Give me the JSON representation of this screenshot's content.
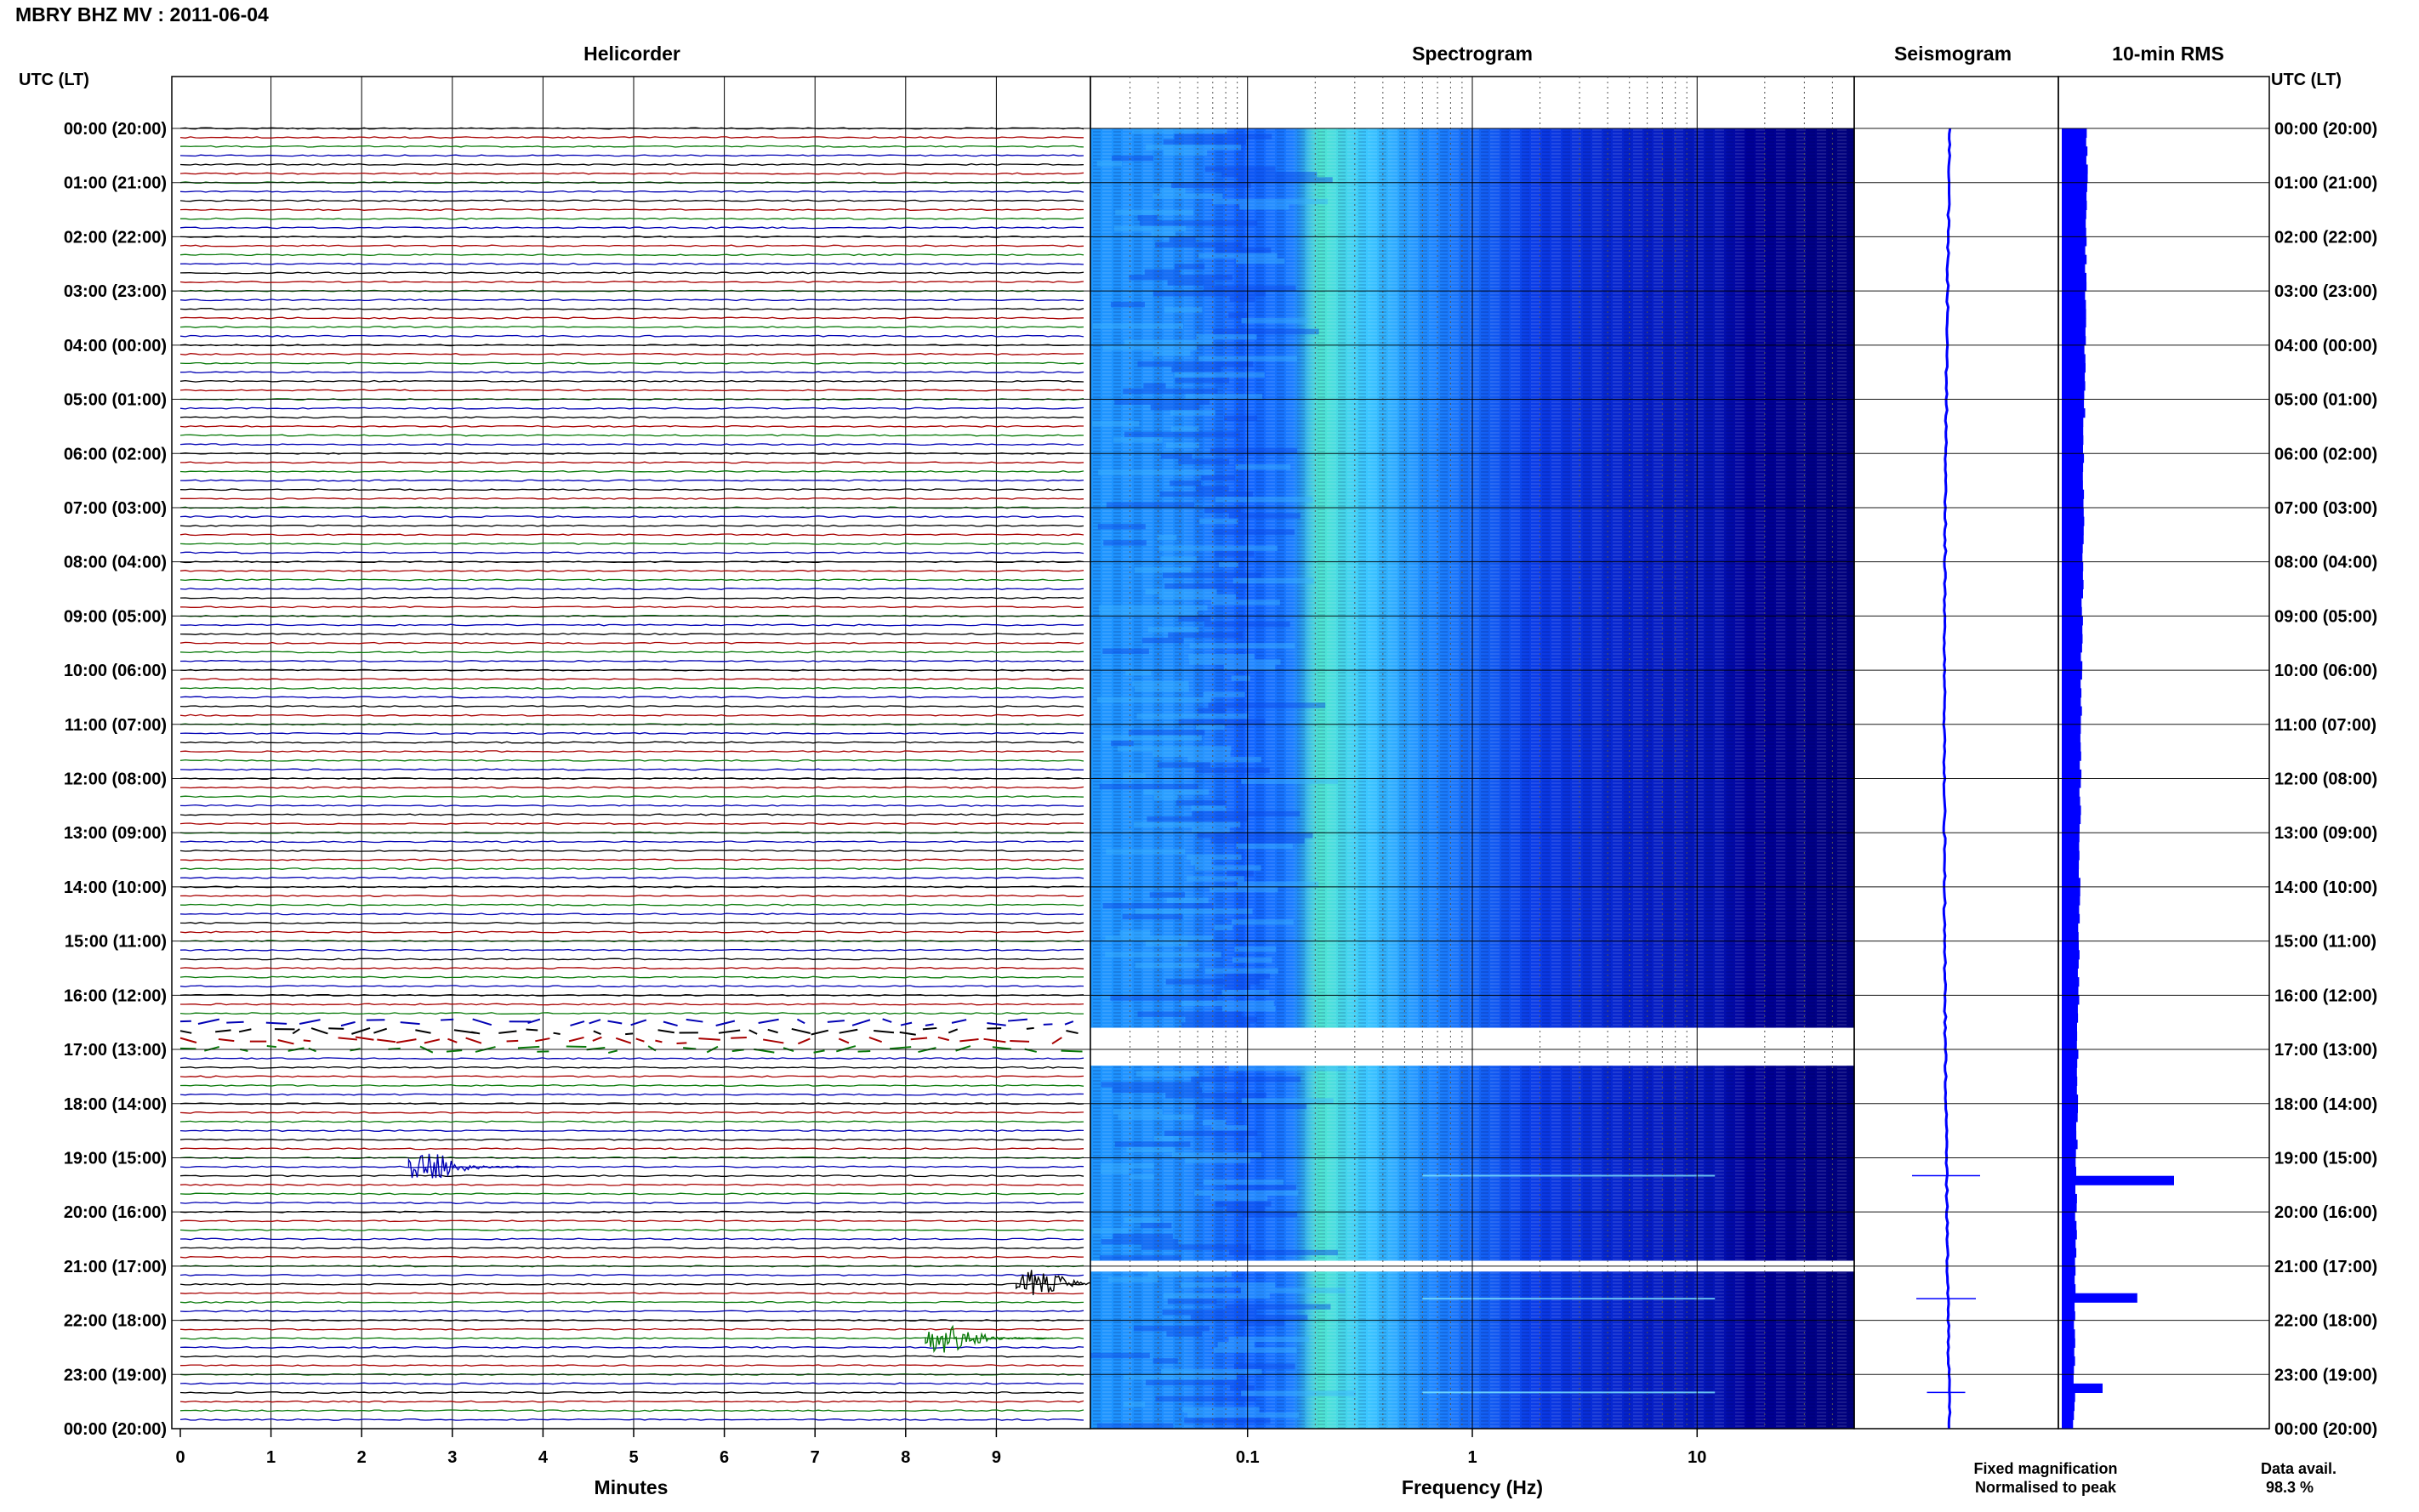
{
  "title": "MBRY BHZ MV : 2011-06-04",
  "panels": {
    "helicorder": "Helicorder",
    "spectrogram": "Spectrogram",
    "seismogram": "Seismogram",
    "rms": "10-min RMS"
  },
  "time_axis_label": "UTC (LT)",
  "legend": {
    "fixed": "Fixed magnification",
    "normalised": "Normalised to peak",
    "data_avail_label": "Data avail.",
    "data_avail_value": "98.3 %"
  },
  "colors": {
    "helicorder_traces": [
      "#000000",
      "#a80000",
      "#0a7a0a",
      "#0000b4"
    ],
    "fixed_magnification": "#0000ff",
    "normalised_to_peak": "#ff0000",
    "spectrogram_colormap": [
      "#00006e",
      "#0000c8",
      "#0a3cff",
      "#1e8cff",
      "#32c8ff",
      "#50f0c8",
      "#a0ff78"
    ],
    "rms_bar": "#0000ff"
  },
  "chart_data": [
    {
      "type": "line",
      "name": "Helicorder",
      "xlabel": "Minutes",
      "x_ticks": [
        "0",
        "1",
        "2",
        "3",
        "4",
        "5",
        "6",
        "7",
        "8",
        "9"
      ],
      "xlim": [
        0,
        10
      ],
      "y_ticks": [
        "00:00 (20:00)",
        "01:00 (21:00)",
        "02:00 (22:00)",
        "03:00 (23:00)",
        "04:00 (00:00)",
        "05:00 (01:00)",
        "06:00 (02:00)",
        "07:00 (03:00)",
        "08:00 (04:00)",
        "09:00 (05:00)",
        "10:00 (06:00)",
        "11:00 (07:00)",
        "12:00 (08:00)",
        "13:00 (09:00)",
        "14:00 (10:00)",
        "15:00 (11:00)",
        "16:00 (12:00)",
        "17:00 (13:00)",
        "18:00 (14:00)",
        "19:00 (15:00)",
        "20:00 (16:00)",
        "21:00 (17:00)",
        "22:00 (18:00)",
        "23:00 (19:00)",
        "00:00 (20:00)"
      ],
      "rows_per_hour": 6,
      "gap_hour_utc": 16.8,
      "events": [
        {
          "utc_hour": 19.17,
          "minute": 2.8
        },
        {
          "utc_hour": 21.33,
          "minute": 9.5
        },
        {
          "utc_hour": 22.33,
          "minute": 8.5
        }
      ]
    },
    {
      "type": "heatmap",
      "name": "Spectrogram",
      "xlabel": "Frequency (Hz)",
      "x_scale": "log",
      "x_ticks": [
        "0.1",
        "1",
        "10"
      ],
      "xlim": [
        0.02,
        50
      ],
      "peak_band_hz": [
        0.2,
        0.5
      ],
      "gaps_utc": [
        [
          16.6,
          17.3
        ],
        [
          20.9,
          21.1
        ]
      ]
    },
    {
      "type": "line",
      "name": "Seismogram",
      "spikes_utc": [
        19.33,
        21.6,
        23.33
      ]
    },
    {
      "type": "bar",
      "name": "10-min RMS",
      "base_level": 0.12,
      "events": [
        {
          "utc_hour": 19.33,
          "value": 0.55
        },
        {
          "utc_hour": 21.5,
          "value": 0.37
        },
        {
          "utc_hour": 23.2,
          "value": 0.2
        }
      ]
    }
  ]
}
